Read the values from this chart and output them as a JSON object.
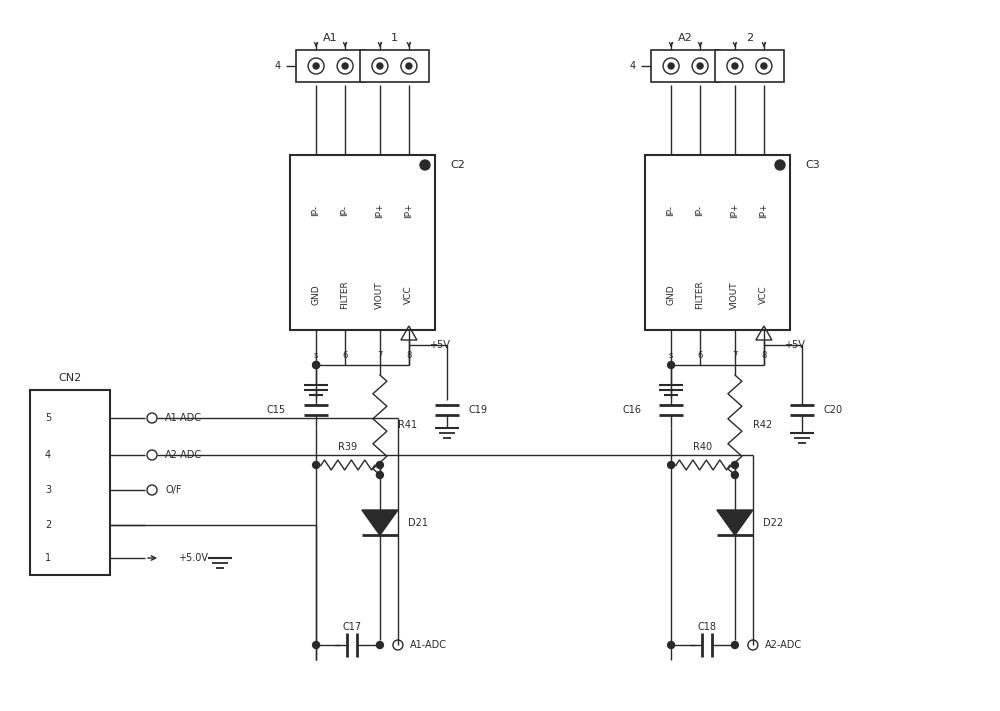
{
  "fig_width": 10.0,
  "fig_height": 7.11,
  "dpi": 100,
  "lc": "#2a2a2a",
  "lw": 1.0,
  "bg": "white",
  "ic1_label": "C2",
  "ic2_label": "C3",
  "pin_labels_top": [
    "IP-",
    "IP-",
    "IP+",
    "IP+"
  ],
  "pin_labels_bot": [
    "GND",
    "FILTER",
    "VIOUT",
    "VCC"
  ],
  "cn2_label": "CN2",
  "conn_pins": [
    [
      5,
      "A1-ADC"
    ],
    [
      4,
      "A2-ADC"
    ],
    [
      3,
      "O/F"
    ],
    [
      2,
      ""
    ],
    [
      1,
      "+5.0V"
    ]
  ],
  "left_resistors": [
    "R39",
    "R41"
  ],
  "right_resistors": [
    "R40",
    "R42"
  ],
  "left_diode": "D21",
  "right_diode": "D22",
  "left_caps_top": [
    "C15",
    "C19"
  ],
  "right_caps_top": [
    "C16",
    "C20"
  ],
  "left_cap_bot": "C17",
  "right_cap_bot": "C18",
  "left_adc": "A1-ADC",
  "right_adc": "A2-ADC",
  "left_terminal_labels": [
    "A1",
    "1"
  ],
  "right_terminal_labels": [
    "A2",
    "2"
  ],
  "plus5v_label": "+5V",
  "plus50v_label": "+5.0V"
}
